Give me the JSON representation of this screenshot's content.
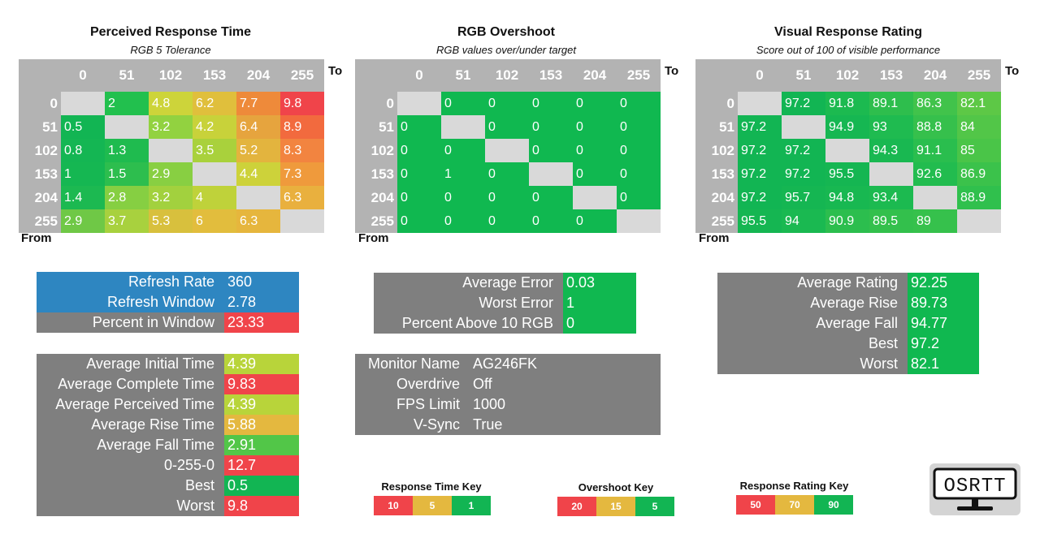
{
  "colors": {
    "header_gray": "#b3b3b3",
    "diag_gray": "#d9d9d9",
    "panel_gray": "#7f7f7f",
    "blue": "#2e86c1",
    "green": "#10b850",
    "red": "#f0444a"
  },
  "perceived": {
    "title": "Perceived Response Time",
    "subtitle": "RGB 5 Tolerance",
    "to_label": "To",
    "from_label": "From",
    "col_headers": [
      "0",
      "51",
      "102",
      "153",
      "204",
      "255"
    ],
    "row_headers": [
      "0",
      "51",
      "102",
      "153",
      "204",
      "255"
    ],
    "rows": [
      [
        "",
        "2",
        "4.8",
        "6.2",
        "7.7",
        "9.8"
      ],
      [
        "0.5",
        "",
        "3.2",
        "4.2",
        "6.4",
        "8.9"
      ],
      [
        "0.8",
        "1.3",
        "",
        "3.5",
        "5.2",
        "8.3"
      ],
      [
        "1",
        "1.5",
        "2.9",
        "",
        "4.4",
        "7.3"
      ],
      [
        "1.4",
        "2.8",
        "3.2",
        "4",
        "",
        "6.3"
      ],
      [
        "2.9",
        "3.7",
        "5.3",
        "6",
        "6.3",
        ""
      ]
    ],
    "colors": [
      [
        "#d9d9d9",
        "#22c04e",
        "#cdd43a",
        "#e0bf3c",
        "#ee8a3a",
        "#f0444a"
      ],
      [
        "#12b553",
        "#d9d9d9",
        "#92d240",
        "#c8d23a",
        "#e6a43e",
        "#f26a3e"
      ],
      [
        "#14b653",
        "#1fbb4f",
        "#d9d9d9",
        "#a9d13c",
        "#e3b43e",
        "#f28440"
      ],
      [
        "#15b752",
        "#2dbe4e",
        "#88cf42",
        "#d9d9d9",
        "#cdd23a",
        "#ef9a3c"
      ],
      [
        "#1cb951",
        "#86cf42",
        "#a2d13e",
        "#bfd23a",
        "#d9d9d9",
        "#e9b03e"
      ],
      [
        "#6fc846",
        "#a8d13e",
        "#d8c03d",
        "#e2bd3d",
        "#e6b63d",
        "#d9d9d9"
      ]
    ]
  },
  "overshoot": {
    "title": "RGB Overshoot",
    "subtitle": "RGB values over/under target",
    "to_label": "To",
    "from_label": "From",
    "col_headers": [
      "0",
      "51",
      "102",
      "153",
      "204",
      "255"
    ],
    "row_headers": [
      "0",
      "51",
      "102",
      "153",
      "204",
      "255"
    ],
    "rows": [
      [
        "",
        "0",
        "0",
        "0",
        "0",
        "0"
      ],
      [
        "0",
        "",
        "0",
        "0",
        "0",
        "0"
      ],
      [
        "0",
        "0",
        "",
        "0",
        "0",
        "0"
      ],
      [
        "0",
        "1",
        "0",
        "",
        "0",
        "0"
      ],
      [
        "0",
        "0",
        "0",
        "0",
        "",
        "0"
      ],
      [
        "0",
        "0",
        "0",
        "0",
        "0",
        ""
      ]
    ]
  },
  "rating": {
    "title": "Visual Response Rating",
    "subtitle": "Score out of 100 of visible performance",
    "to_label": "To",
    "from_label": "From",
    "col_headers": [
      "0",
      "51",
      "102",
      "153",
      "204",
      "255"
    ],
    "row_headers": [
      "0",
      "51",
      "102",
      "153",
      "204",
      "255"
    ],
    "rows": [
      [
        "",
        "97.2",
        "91.8",
        "89.1",
        "86.3",
        "82.1"
      ],
      [
        "97.2",
        "",
        "94.9",
        "93",
        "88.8",
        "84"
      ],
      [
        "97.2",
        "97.2",
        "",
        "94.3",
        "91.1",
        "85"
      ],
      [
        "97.2",
        "97.2",
        "95.5",
        "",
        "92.6",
        "86.9"
      ],
      [
        "97.2",
        "95.7",
        "94.8",
        "93.4",
        "",
        "88.9"
      ],
      [
        "95.5",
        "94",
        "90.9",
        "89.5",
        "89",
        ""
      ]
    ],
    "colors": [
      [
        "#d9d9d9",
        "#12b553",
        "#1cba50",
        "#2ebe4d",
        "#41c34b",
        "#5dc846"
      ],
      [
        "#12b553",
        "#d9d9d9",
        "#16b752",
        "#1fbb50",
        "#36c04c",
        "#52c648"
      ],
      [
        "#12b553",
        "#12b553",
        "#d9d9d9",
        "#19b851",
        "#2abe4e",
        "#4ac548"
      ],
      [
        "#12b553",
        "#12b553",
        "#15b652",
        "#d9d9d9",
        "#22bc4f",
        "#3bc24b"
      ],
      [
        "#12b553",
        "#15b652",
        "#18b851",
        "#1cba50",
        "#d9d9d9",
        "#30c04d"
      ],
      [
        "#15b652",
        "#1ab951",
        "#2cbe4e",
        "#33c04c",
        "#36c14c",
        "#d9d9d9"
      ]
    ]
  },
  "refresh": [
    {
      "label": "Refresh Rate",
      "value": "360"
    },
    {
      "label": "Refresh Window",
      "value": "2.78"
    },
    {
      "label": "Percent in Window",
      "value": "23.33"
    }
  ],
  "times": [
    {
      "label": "Average Initial Time",
      "value": "4.39",
      "color": "#b8d43a"
    },
    {
      "label": "Average Complete Time",
      "value": "9.83",
      "color": "#f0444a"
    },
    {
      "label": "Average Perceived Time",
      "value": "4.39",
      "color": "#b8d43a"
    },
    {
      "label": "Average Rise Time",
      "value": "5.88",
      "color": "#e4b83f"
    },
    {
      "label": "Average Fall Time",
      "value": "2.91",
      "color": "#52c648"
    },
    {
      "label": "0-255-0",
      "value": "12.7",
      "color": "#f0444a"
    },
    {
      "label": "Best",
      "value": "0.5",
      "color": "#12b553"
    },
    {
      "label": "Worst",
      "value": "9.8",
      "color": "#f0444a"
    }
  ],
  "errors": [
    {
      "label": "Average Error",
      "value": "0.03"
    },
    {
      "label": "Worst Error",
      "value": "1"
    },
    {
      "label": "Percent Above 10 RGB",
      "value": "0"
    }
  ],
  "monitor": [
    {
      "label": "Monitor Name",
      "value": "AG246FK"
    },
    {
      "label": "Overdrive",
      "value": "Off"
    },
    {
      "label": "FPS Limit",
      "value": "1000"
    },
    {
      "label": "V-Sync",
      "value": "True"
    }
  ],
  "ratings_summary": [
    {
      "label": "Average Rating",
      "value": "92.25"
    },
    {
      "label": "Average Rise",
      "value": "89.73"
    },
    {
      "label": "Average Fall",
      "value": "94.77"
    },
    {
      "label": "Best",
      "value": "97.2"
    },
    {
      "label": "Worst",
      "value": "82.1"
    }
  ],
  "keys": {
    "response_time": {
      "title": "Response Time Key",
      "values": [
        "10",
        "5",
        "1"
      ],
      "colors": [
        "#f0444a",
        "#e4b83f",
        "#12b553"
      ]
    },
    "overshoot": {
      "title": "Overshoot Key",
      "values": [
        "20",
        "15",
        "5"
      ],
      "colors": [
        "#f0444a",
        "#e4b83f",
        "#12b553"
      ]
    },
    "rating": {
      "title": "Response Rating Key",
      "values": [
        "50",
        "70",
        "90"
      ],
      "colors": [
        "#f0444a",
        "#e4b83f",
        "#12b553"
      ]
    }
  },
  "logo": {
    "text": "OSRTT",
    "icon": "monitor-icon"
  }
}
